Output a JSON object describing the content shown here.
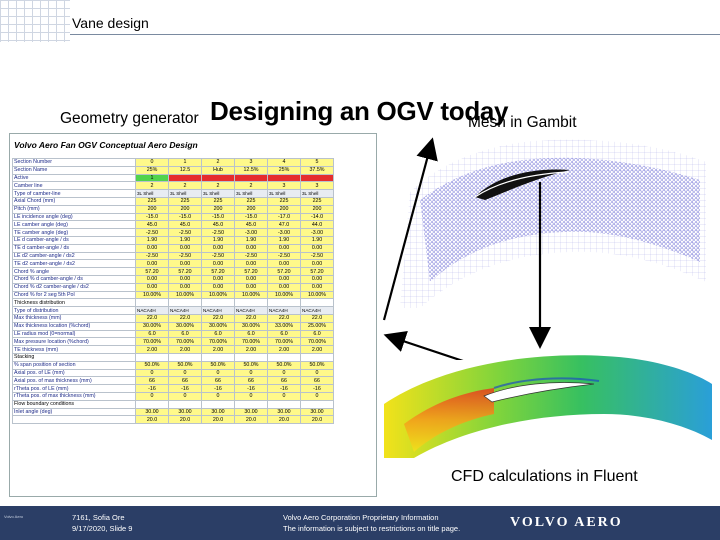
{
  "header": {
    "title": "Vane design"
  },
  "slide": {
    "geometry_label": "Geometry generator",
    "headline": "Designing an OGV today",
    "mesh_label": "Mesh in Gambit",
    "cfd_label": "CFD calculations in Fluent"
  },
  "sheet": {
    "title": "Volvo Aero Fan OGV Conceptual Aero Design",
    "rows": [
      {
        "label": "Section Number",
        "values": [
          "0",
          "1",
          "2",
          "3",
          "4",
          "5"
        ],
        "style": "y"
      },
      {
        "label": "Section Name",
        "values": [
          "25%",
          "12.5",
          "Hub",
          "12.5%",
          "25%",
          "37.5%"
        ],
        "style": "y"
      },
      {
        "label": "Active",
        "values": [
          "1",
          "",
          "",
          "",
          "",
          ""
        ],
        "style": "gr"
      },
      {
        "label": "Camber line",
        "values": [
          "2",
          "2",
          "2",
          "2",
          "3",
          "3"
        ],
        "style": "y"
      },
      {
        "label": "Type of camber-line",
        "values": [
          "3L Shell",
          "3L Shell",
          "3L Shell",
          "3L Shell",
          "3L Shell",
          "3L Shell"
        ],
        "style": "dd"
      },
      {
        "label": "Axial Chord (mm)",
        "values": [
          "225",
          "225",
          "225",
          "225",
          "225",
          "225"
        ],
        "style": "y"
      },
      {
        "label": "Pitch (mm)",
        "values": [
          "200",
          "200",
          "200",
          "200",
          "200",
          "200"
        ],
        "style": "y"
      },
      {
        "label": "LE incidence angle (deg)",
        "values": [
          "-15.0",
          "-15.0",
          "-15.0",
          "-15.0",
          "-17.0",
          "-14.0"
        ],
        "style": "y"
      },
      {
        "label": "LE camber angle (deg)",
        "values": [
          "45.0",
          "45.0",
          "45.0",
          "45.0",
          "47.0",
          "44.0"
        ],
        "style": "y"
      },
      {
        "label": "TE camber angle (deg)",
        "values": [
          "-2.50",
          "-2.50",
          "-2.50",
          "-3.00",
          "-3.00",
          "-3.00"
        ],
        "style": "y"
      },
      {
        "label": "LE d camber-angle / ds",
        "values": [
          "1.90",
          "1.90",
          "1.90",
          "1.90",
          "1.90",
          "1.90"
        ],
        "style": "y"
      },
      {
        "label": "TE d camber-angle / ds",
        "values": [
          "0.00",
          "0.00",
          "0.00",
          "0.00",
          "0.00",
          "0.00"
        ],
        "style": "y"
      },
      {
        "label": "LE d2 camber-angle / ds2",
        "values": [
          "-2.50",
          "-2.50",
          "-2.50",
          "-2.50",
          "-2.50",
          "-2.50"
        ],
        "style": "y"
      },
      {
        "label": "TE d2 camber-angle / ds2",
        "values": [
          "0.00",
          "0.00",
          "0.00",
          "0.00",
          "0.00",
          "0.00"
        ],
        "style": "y"
      },
      {
        "label": "Chord % angle",
        "values": [
          "57.20",
          "57.20",
          "57.20",
          "57.20",
          "57.20",
          "57.20"
        ],
        "style": "y"
      },
      {
        "label": "Chord % d camber-angle / ds",
        "values": [
          "0.00",
          "0.00",
          "0.00",
          "0.00",
          "0.00",
          "0.00"
        ],
        "style": "y"
      },
      {
        "label": "Chord % d2 camber-angle / ds2",
        "values": [
          "0.00",
          "0.00",
          "0.00",
          "0.00",
          "0.00",
          "0.00"
        ],
        "style": "y"
      },
      {
        "label": "Chord % for 2 seg 5th Pol",
        "values": [
          "10.00%",
          "10.00%",
          "10.00%",
          "10.00%",
          "10.00%",
          "10.00%"
        ],
        "style": "y"
      },
      {
        "label": "Thickness distribution",
        "values": [],
        "style": "sec"
      },
      {
        "label": "Type of distribution",
        "values": [
          "NACA4H",
          "NACA4H",
          "NACA4H",
          "NACA4H",
          "NACA4H",
          "NACA4H"
        ],
        "style": "dd"
      },
      {
        "label": "Max thickness (mm)",
        "values": [
          "22.0",
          "22.0",
          "22.0",
          "22.0",
          "22.0",
          "22.0"
        ],
        "style": "y"
      },
      {
        "label": "Max thickness location (%chord)",
        "values": [
          "30.00%",
          "30.00%",
          "30.00%",
          "30.00%",
          "33.00%",
          "25.00%"
        ],
        "style": "y"
      },
      {
        "label": "LE radius mod (0=normal)",
        "values": [
          "6.0",
          "6.0",
          "6.0",
          "6.0",
          "6.0",
          "6.0"
        ],
        "style": "y"
      },
      {
        "label": "Max pressure location (%chord)",
        "values": [
          "70.00%",
          "70.00%",
          "70.00%",
          "70.00%",
          "70.00%",
          "70.00%"
        ],
        "style": "y"
      },
      {
        "label": "TE thickness (mm)",
        "values": [
          "2.00",
          "2.00",
          "2.00",
          "2.00",
          "2.00",
          "2.00"
        ],
        "style": "y"
      },
      {
        "label": "Stacking",
        "values": [],
        "style": "sec"
      },
      {
        "label": "% span position of section",
        "values": [
          "50.0%",
          "50.0%",
          "50.0%",
          "50.0%",
          "50.0%",
          "50.0%"
        ],
        "style": "y"
      },
      {
        "label": "Axial pos. of LE (mm)",
        "values": [
          "0",
          "0",
          "0",
          "0",
          "0",
          "0"
        ],
        "style": "y"
      },
      {
        "label": "Axial pos. of max thickness (mm)",
        "values": [
          "66",
          "66",
          "66",
          "66",
          "66",
          "66"
        ],
        "style": "y"
      },
      {
        "label": "rTheta pos. of LE (mm)",
        "values": [
          "-16",
          "-16",
          "-16",
          "-16",
          "-16",
          "-16"
        ],
        "style": "y"
      },
      {
        "label": "rTheta pos. of max thickness (mm)",
        "values": [
          "0",
          "0",
          "0",
          "0",
          "0",
          "0"
        ],
        "style": "y"
      },
      {
        "label": "Flow boundary conditions",
        "values": [],
        "style": "sec"
      },
      {
        "label": "Inlet angle (deg)",
        "values": [
          "30.00",
          "30.00",
          "30.00",
          "30.00",
          "30.00",
          "30.00"
        ],
        "style": "y"
      },
      {
        "label": "",
        "values": [
          "20.0",
          "20.0",
          "20.0",
          "20.0",
          "20.0",
          "20.0"
        ],
        "style": "y"
      }
    ]
  },
  "footer": {
    "left_tag": "Volvo Aero",
    "line1": "7161, Sofia Ore",
    "line2": "9/17/2020, Slide 9",
    "info1": "Volvo Aero Corporation Proprietary Information",
    "info2": "The information is subject to restrictions on title page.",
    "logo": "VOLVO AERO"
  },
  "colors": {
    "footer_bg": "#2b3e66",
    "cell_yellow": "#fff98a",
    "cell_green": "#50d34c",
    "cell_red": "#e52d2d"
  }
}
